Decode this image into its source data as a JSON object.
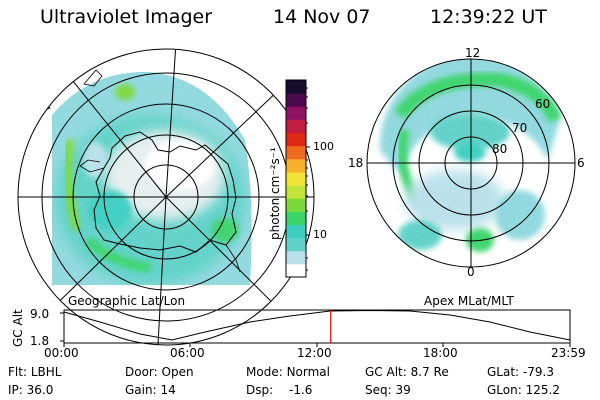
{
  "header": {
    "instrument": "Ultraviolet Imager",
    "date": "14 Nov 07",
    "time": "12:39:22 UT"
  },
  "left_panel": {
    "caption": "Geographic Lat/Lon"
  },
  "right_panel": {
    "caption": "Apex MLat/MLT",
    "mlt_labels": {
      "top": "12",
      "left": "18",
      "right": "6",
      "bottom": "0"
    },
    "mlat_labels": [
      "60",
      "70",
      "80"
    ]
  },
  "colorbar": {
    "unit": "photon cm⁻²s⁻¹",
    "ticks": [
      "100",
      "10"
    ],
    "scale": "log",
    "colors": [
      "#ffffff",
      "#b9e0ea",
      "#5fd1c8",
      "#3ccfc0",
      "#3ad46b",
      "#7ad83a",
      "#c2e33a",
      "#f1e436",
      "#f7b12e",
      "#f06a1d",
      "#de2a14",
      "#c11d3e",
      "#8e1363",
      "#4b0a4e",
      "#160c2e"
    ]
  },
  "timeline": {
    "ylabel": "GC Alt",
    "y_ticks": [
      "9.0",
      "1.8"
    ],
    "x_ticks": [
      "00:00",
      "06:00",
      "12:00",
      "18:00",
      "23:59"
    ],
    "current_time_fraction": 0.527
  },
  "info": {
    "row1": [
      {
        "key": "Flt:",
        "value": "LBHL"
      },
      {
        "key": "Door:",
        "value": "Open"
      },
      {
        "key": "Mode:",
        "value": "Normal"
      },
      {
        "key": "GC Alt:",
        "value": "8.7 Re"
      },
      {
        "key": "GLat:",
        "value": "-79.3"
      }
    ],
    "row2": [
      {
        "key": "IP:",
        "value": "36.0"
      },
      {
        "key": "Gain:",
        "value": "14"
      },
      {
        "key": "Dsp:",
        "value": "-1.6"
      },
      {
        "key": "Seq:",
        "value": "39"
      },
      {
        "key": "GLon:",
        "value": "125.2"
      }
    ]
  }
}
